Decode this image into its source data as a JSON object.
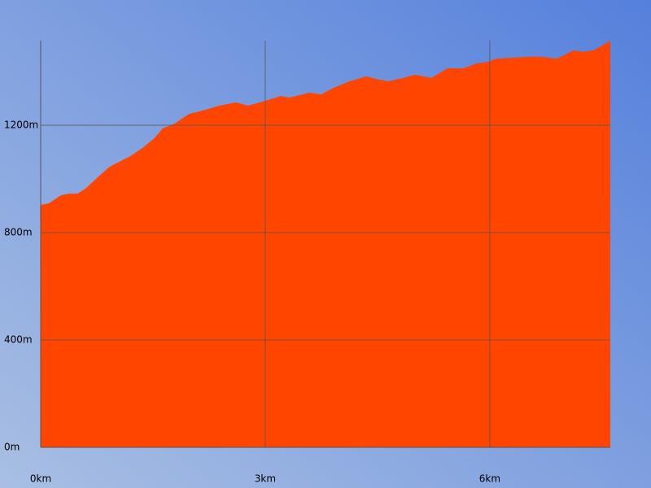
{
  "chart_data": {
    "type": "area",
    "x": [
      0,
      0.11,
      0.27,
      0.38,
      0.49,
      0.6,
      0.76,
      0.92,
      1.03,
      1.2,
      1.36,
      1.52,
      1.63,
      1.79,
      1.98,
      2.17,
      2.39,
      2.61,
      2.77,
      2.93,
      3.21,
      3.32,
      3.59,
      3.75,
      3.91,
      4.13,
      4.35,
      4.51,
      4.65,
      4.84,
      5.0,
      5.22,
      5.33,
      5.43,
      5.65,
      5.82,
      5.98,
      6.09,
      6.36,
      6.52,
      6.68,
      6.9,
      7.12,
      7.23,
      7.39,
      7.61
    ],
    "values": [
      903,
      909,
      939,
      945,
      945,
      964,
      1006,
      1045,
      1061,
      1085,
      1115,
      1152,
      1188,
      1206,
      1242,
      1255,
      1273,
      1285,
      1273,
      1285,
      1309,
      1303,
      1321,
      1315,
      1339,
      1364,
      1382,
      1370,
      1364,
      1376,
      1388,
      1376,
      1394,
      1412,
      1412,
      1430,
      1436,
      1448,
      1452,
      1455,
      1455,
      1448,
      1479,
      1473,
      1479,
      1515
    ],
    "color": "#ff4500",
    "xlim": [
      0,
      7.61
    ],
    "xticks": [
      {
        "value": 0,
        "label": "0km"
      },
      {
        "value": 3,
        "label": "3km"
      },
      {
        "value": 6,
        "label": "6km"
      }
    ],
    "ylim": [
      0,
      1515
    ],
    "yticks": [
      {
        "value": 0,
        "label": "0m"
      },
      {
        "value": 400,
        "label": "400m"
      },
      {
        "value": 800,
        "label": "800m"
      },
      {
        "value": 1200,
        "label": "1200m"
      }
    ],
    "grid": true
  }
}
